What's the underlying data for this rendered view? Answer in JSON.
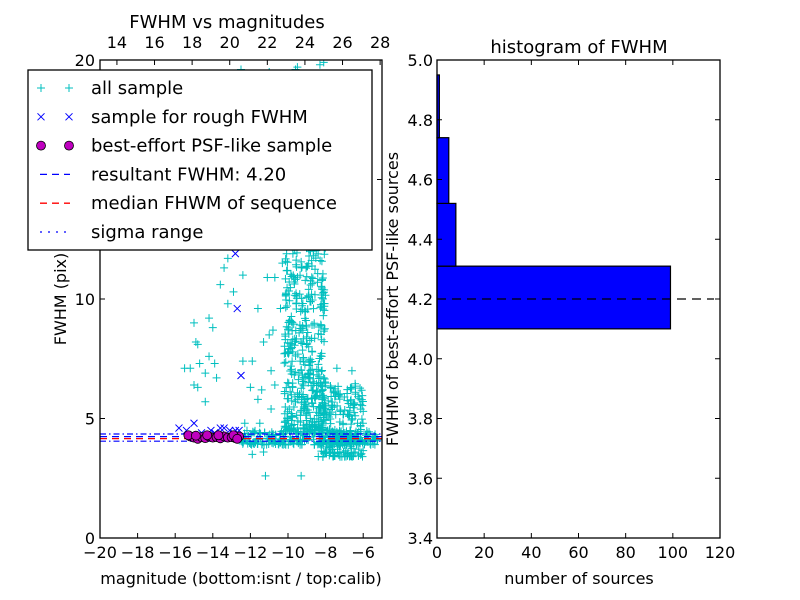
{
  "chart_data": [
    {
      "type": "scatter",
      "title": "FWHM vs magnitudes",
      "xlabel": "magnitude (bottom:isnt / top:calib)",
      "ylabel": "FWHM (pix)",
      "xlim": [
        -20,
        -5
      ],
      "ylim": [
        0,
        20
      ],
      "top_xlim_offset": 33.1,
      "xticks": [
        "−20",
        "−18",
        "−16",
        "−14",
        "−12",
        "−10",
        "−8",
        "−6"
      ],
      "xtick_values": [
        -20,
        -18,
        -16,
        -14,
        -12,
        -10,
        -8,
        -6
      ],
      "top_xticks": [
        "14",
        "16",
        "18",
        "20",
        "22",
        "24",
        "26",
        "28"
      ],
      "top_xtick_values": [
        14,
        16,
        18,
        20,
        22,
        24,
        26,
        28
      ],
      "yticks": [
        "0",
        "5",
        "10",
        "15",
        "20"
      ],
      "ytick_values": [
        0,
        5,
        10,
        15,
        20
      ],
      "legend": {
        "placement": "upper-left",
        "entries": [
          {
            "label": "all sample",
            "marker": "plus",
            "color": "#00bfbf"
          },
          {
            "label": "sample for rough FWHM",
            "marker": "x",
            "color": "#0000ff"
          },
          {
            "label": "best-effort PSF-like sample",
            "marker": "circle",
            "color": "#bf00bf"
          },
          {
            "label": "resultant FWHM: 4.20",
            "marker": "dashed-line",
            "color": "#0000ff"
          },
          {
            "label": "median FHWM of sequence",
            "marker": "dashed-line",
            "color": "#ff0000"
          },
          {
            "label": "sigma range",
            "marker": "dashdot-line",
            "color": "#0000ff"
          }
        ]
      },
      "hlines": {
        "resultant": 4.2,
        "median": 4.2,
        "sigma_low": 4.05,
        "sigma_high": 4.35
      },
      "series": [
        {
          "name": "all sample",
          "color": "#00bfbf",
          "marker": "plus",
          "points": [
            [
              -14.9,
              8.2
            ],
            [
              -14.8,
              8.1
            ],
            [
              -15.0,
              6.4
            ],
            [
              -14.8,
              6.3
            ],
            [
              -15.2,
              7.1
            ],
            [
              -15.5,
              7.1
            ],
            [
              -14.7,
              7.3
            ],
            [
              -14.2,
              7.6
            ],
            [
              -13.9,
              7.3
            ],
            [
              -14.0,
              8.8
            ],
            [
              -13.6,
              10.6
            ],
            [
              -13.4,
              11.3
            ],
            [
              -13.2,
              9.8
            ],
            [
              -12.9,
              10.3
            ],
            [
              -12.4,
              7.4
            ],
            [
              -12.0,
              6.3
            ],
            [
              -11.6,
              9.6
            ],
            [
              -11.1,
              10.9
            ],
            [
              -10.7,
              10.9
            ],
            [
              -11.0,
              8.5
            ],
            [
              -11.3,
              8.2
            ],
            [
              -11.6,
              5.8
            ],
            [
              -11.9,
              7.4
            ],
            [
              -12.3,
              4.8
            ],
            [
              -11.9,
              3.5
            ],
            [
              -11.3,
              3.6
            ],
            [
              -11.2,
              2.6
            ],
            [
              -9.3,
              2.6
            ],
            [
              -13.8,
              6.7
            ],
            [
              -14.4,
              5.7
            ],
            [
              -14.4,
              6.9
            ],
            [
              -15.0,
              9.0
            ],
            [
              -14.2,
              9.2
            ],
            [
              -13.2,
              11.7
            ],
            [
              -12.4,
              11.0
            ],
            [
              -10.3,
              11.5
            ],
            [
              -10.1,
              10.2
            ],
            [
              -10.4,
              9.6
            ],
            [
              -10.8,
              8.7
            ],
            [
              -10.9,
              7.0
            ],
            [
              -11.4,
              6.2
            ],
            [
              -10.7,
              6.4
            ],
            [
              -10.9,
              5.4
            ],
            [
              -11.5,
              4.8
            ],
            [
              -7.4,
              7.1
            ],
            [
              -6.6,
              7.0
            ],
            [
              -6.3,
              4.8
            ],
            [
              -5.4,
              4.2
            ],
            [
              -5.6,
              3.9
            ],
            [
              -6.0,
              5.3
            ],
            [
              -6.5,
              5.6
            ],
            [
              -7.0,
              5.9
            ],
            [
              -7.3,
              6.0
            ],
            [
              -9.9,
              13.4
            ],
            [
              -9.4,
              14.7
            ],
            [
              -8.8,
              12.0
            ],
            [
              -9.6,
              19.6
            ],
            [
              -9.5,
              19.7
            ],
            [
              -11.0,
              19.5
            ],
            [
              -12.5,
              19.6
            ],
            [
              -8.1,
              19.9
            ],
            [
              -8.3,
              19.8
            ],
            [
              -6.8,
              19.0
            ]
          ],
          "dense_regions": [
            {
              "x": [
                -12.5,
                -5.2
              ],
              "y": [
                3.9,
                4.5
              ],
              "count": 260
            },
            {
              "x": [
                -10.2,
                -8.0
              ],
              "y": [
                4.5,
                12.5
              ],
              "count": 420
            },
            {
              "x": [
                -8.4,
                -6.0
              ],
              "y": [
                3.4,
                6.5
              ],
              "count": 220
            }
          ]
        },
        {
          "name": "sample for rough FWHM",
          "color": "#0000ff",
          "marker": "x",
          "points": [
            [
              -15.8,
              4.6
            ],
            [
              -15.4,
              4.5
            ],
            [
              -15.0,
              4.8
            ],
            [
              -14.1,
              4.5
            ],
            [
              -13.6,
              4.6
            ],
            [
              -13.4,
              4.6
            ],
            [
              -13.1,
              4.5
            ],
            [
              -12.8,
              4.5
            ],
            [
              -12.6,
              4.5
            ],
            [
              -12.7,
              9.6
            ],
            [
              -12.5,
              6.8
            ],
            [
              -12.8,
              11.9
            ],
            [
              -14.6,
              4.4
            ],
            [
              -13.9,
              4.4
            ],
            [
              -12.9,
              4.4
            ]
          ]
        },
        {
          "name": "best-effort PSF-like sample",
          "color": "#bf00bf",
          "marker": "circle",
          "points": [
            [
              -15.2,
              4.25
            ],
            [
              -15.0,
              4.2
            ],
            [
              -14.8,
              4.15
            ],
            [
              -14.6,
              4.22
            ],
            [
              -14.4,
              4.18
            ],
            [
              -14.2,
              4.25
            ],
            [
              -14.0,
              4.2
            ],
            [
              -13.8,
              4.22
            ],
            [
              -13.6,
              4.17
            ],
            [
              -13.4,
              4.25
            ],
            [
              -13.2,
              4.2
            ],
            [
              -13.0,
              4.22
            ],
            [
              -12.8,
              4.18
            ],
            [
              -12.6,
              4.25
            ],
            [
              -15.3,
              4.3
            ],
            [
              -14.9,
              4.28
            ],
            [
              -14.3,
              4.3
            ],
            [
              -13.7,
              4.3
            ],
            [
              -12.9,
              4.3
            ],
            [
              -12.7,
              4.15
            ]
          ]
        }
      ]
    },
    {
      "type": "bar",
      "orientation": "horizontal",
      "title": "histogram of FWHM",
      "xlabel": "number of sources",
      "ylabel": "FWHM of best-effort PSF-like sources",
      "xlim": [
        0,
        120
      ],
      "ylim": [
        3.4,
        5.0
      ],
      "xticks": [
        "0",
        "20",
        "40",
        "60",
        "80",
        "100",
        "120"
      ],
      "xtick_values": [
        0,
        20,
        40,
        60,
        80,
        100,
        120
      ],
      "yticks": [
        "3.4",
        "3.6",
        "3.8",
        "4.0",
        "4.2",
        "4.4",
        "4.6",
        "4.8",
        "5.0"
      ],
      "ytick_values": [
        3.4,
        3.6,
        3.8,
        4.0,
        4.2,
        4.4,
        4.6,
        4.8,
        5.0
      ],
      "bins": [
        [
          4.1,
          4.31
        ],
        [
          4.31,
          4.52
        ],
        [
          4.52,
          4.74
        ],
        [
          4.74,
          4.95
        ]
      ],
      "values": [
        99,
        8,
        5,
        1
      ],
      "bar_color": "#0000ff",
      "hline": 4.2
    }
  ]
}
